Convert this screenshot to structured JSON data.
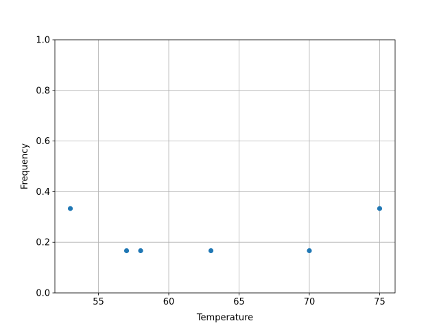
{
  "chart_data": {
    "type": "scatter",
    "title": "",
    "xlabel": "Temperature",
    "ylabel": "Frequency",
    "xlim": [
      51.9,
      76.1
    ],
    "ylim": [
      0,
      1
    ],
    "xticks": [
      55,
      60,
      65,
      70,
      75
    ],
    "yticks": [
      0.0,
      0.2,
      0.4,
      0.6,
      0.8,
      1.0
    ],
    "xtick_labels": [
      "55",
      "60",
      "65",
      "70",
      "75"
    ],
    "ytick_labels": [
      "0.0",
      "0.2",
      "0.4",
      "0.6",
      "0.8",
      "1.0"
    ],
    "grid": true,
    "color": "#1f77b4",
    "x": [
      53,
      57,
      58,
      63,
      70,
      75
    ],
    "y": [
      0.3333,
      0.1667,
      0.1667,
      0.1667,
      0.1667,
      0.3333
    ]
  }
}
